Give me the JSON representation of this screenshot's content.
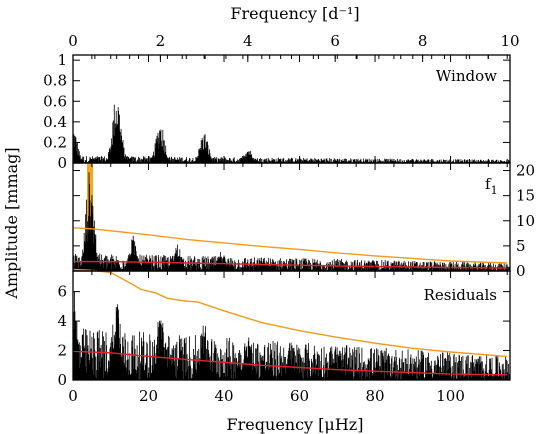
{
  "chart_data": {
    "type": "line",
    "top_axis": {
      "label": "Frequency [d⁻¹]",
      "ticks": [
        "0",
        "2",
        "4",
        "6",
        "8",
        "10"
      ],
      "range": [
        0,
        10
      ]
    },
    "bottom_axis": {
      "label": "Frequency [μHz]",
      "ticks": [
        "0",
        "20",
        "40",
        "60",
        "80",
        "100"
      ],
      "range": [
        0,
        115.74
      ]
    },
    "ylabel": "Amplitude [mmag]",
    "panels": [
      {
        "name": "Window",
        "label": "Window",
        "ylim": [
          0,
          1.05
        ],
        "yticks": [
          "0",
          "0.2",
          "0.4",
          "0.6",
          "0.8",
          "1"
        ],
        "ytick_side": "left",
        "series": [
          {
            "kind": "spectrum",
            "color": "#000000",
            "peaks": [
              [
                0.0,
                0.36
              ],
              [
                11.57,
                0.7
              ],
              [
                23.15,
                0.42
              ],
              [
                34.72,
                0.31
              ],
              [
                46.3,
                0.16
              ]
            ],
            "noise_floor": 0.04
          }
        ]
      },
      {
        "name": "f1",
        "label": "f",
        "label_sub": "1",
        "ylim": [
          0,
          21.5
        ],
        "yticks": [
          "0",
          "5",
          "10",
          "15",
          "20"
        ],
        "ytick_side": "right",
        "series": [
          {
            "kind": "peak",
            "color": "#f5a623",
            "x": 4.5,
            "y": 21.3
          },
          {
            "kind": "spectrum",
            "color": "#000000",
            "peaks": [
              [
                4.5,
                20.5
              ],
              [
                16.1,
                7.2
              ],
              [
                27.6,
                5.6
              ],
              [
                39.2,
                4.0
              ],
              [
                50.8,
                2.7
              ]
            ],
            "noise_floor": 2.0
          },
          {
            "kind": "line",
            "name": "",
            "color": "#f59a1a",
            "x": [
              0,
              5,
              10,
              20,
              30,
              40,
              50,
              60,
              70,
              80,
              90,
              100,
              115
            ],
            "y": [
              8.6,
              8.4,
              8.0,
              7.2,
              6.3,
              5.6,
              4.9,
              4.3,
              3.6,
              3.0,
              2.5,
              2.0,
              1.6
            ]
          },
          {
            "kind": "line",
            "name": "",
            "color": "#e8202a",
            "x": [
              0,
              10,
              20,
              30,
              40,
              50,
              60,
              70,
              80,
              90,
              100,
              115
            ],
            "y": [
              1.9,
              1.85,
              1.75,
              1.6,
              1.45,
              1.3,
              1.15,
              1.0,
              0.9,
              0.8,
              0.7,
              0.6
            ]
          }
        ]
      },
      {
        "name": "Residuals",
        "label": "Residuals",
        "ylim": [
          0,
          7.4
        ],
        "yticks": [
          "0",
          "2",
          "4",
          "6"
        ],
        "ytick_side": "left",
        "series": [
          {
            "kind": "spectrum",
            "color": "#000000",
            "peaks": [
              [
                0.0,
                6.5
              ],
              [
                11.6,
                6.0
              ],
              [
                23.2,
                5.2
              ],
              [
                34.7,
                4.2
              ],
              [
                46.3,
                3.5
              ],
              [
                57.9,
                2.6
              ],
              [
                69.4,
                2.4
              ]
            ],
            "noise_floor": 2.0
          },
          {
            "kind": "line",
            "name": "",
            "color": "#f59a1a",
            "x": [
              0,
              5,
              10,
              15,
              18,
              22,
              25,
              30,
              33,
              40,
              50,
              60,
              70,
              80,
              90,
              100,
              115
            ],
            "y": [
              7.5,
              7.45,
              7.3,
              6.6,
              6.15,
              5.9,
              5.55,
              5.35,
              5.3,
              4.7,
              3.9,
              3.35,
              2.9,
              2.5,
              2.15,
              1.9,
              1.6
            ]
          },
          {
            "kind": "line",
            "name": "",
            "color": "#e8202a",
            "x": [
              0,
              10,
              20,
              30,
              40,
              50,
              60,
              70,
              80,
              90,
              100,
              115
            ],
            "y": [
              1.95,
              1.85,
              1.6,
              1.4,
              1.2,
              1.0,
              0.85,
              0.7,
              0.6,
              0.5,
              0.4,
              0.35
            ]
          }
        ]
      }
    ]
  }
}
